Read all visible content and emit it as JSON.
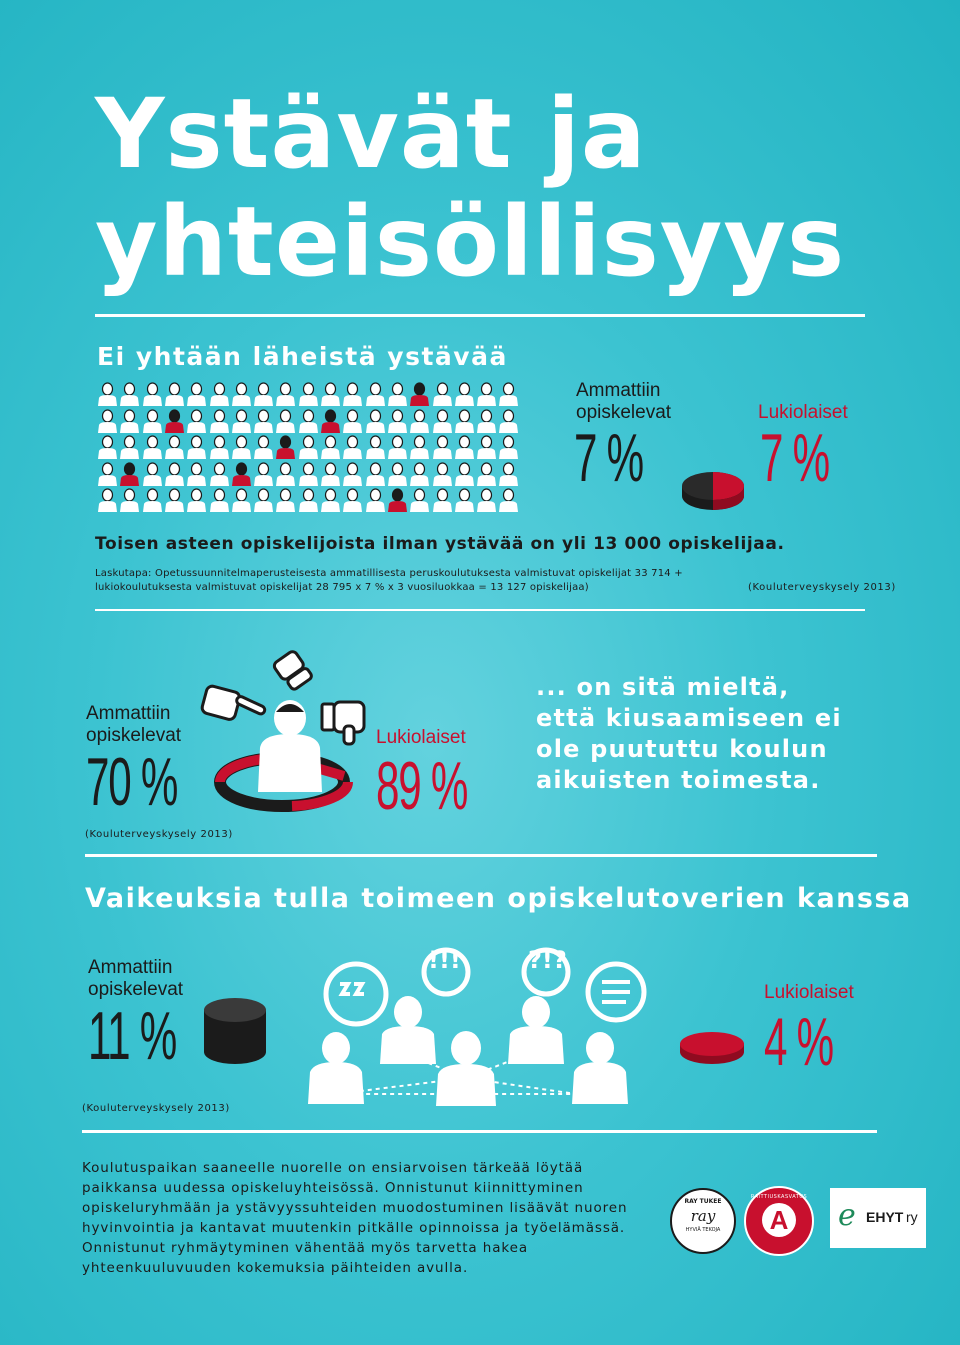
{
  "title_line1": "Ystävät ja",
  "title_line2": "yhteisöllisyys",
  "section1": {
    "heading": "Ei yhtään läheistä ystävää",
    "vocational_label_1": "Ammattiin",
    "vocational_label_2": "opiskelevat",
    "vocational_value": "7 %",
    "upper_secondary_label": "Lukiolaiset",
    "upper_secondary_value": "7 %",
    "summary": "Toisen asteen opiskelijoista ilman ystävää on yli 13 000 opiskelijaa.",
    "calc_line1": "Laskutapa: Opetussuunnitelmaperusteisesta ammatillisesta peruskoulutuksesta valmistuvat opiskelijat 33 714 +",
    "calc_line2": "lukiokoulutuksesta valmistuvat opiskelijat 28 795 x 7 % x 3 vuosiluokkaa = 13 127 opiskelijaa)",
    "source": "(Kouluterveyskysely 2013)",
    "people_total": 95,
    "people_highlighted": 7
  },
  "section2": {
    "vocational_label_1": "Ammattiin",
    "vocational_label_2": "opiskelevat",
    "vocational_value": "70 %",
    "upper_secondary_label": "Lukiolaiset",
    "upper_secondary_value": "89 %",
    "quote_line1": "... on sitä mieltä,",
    "quote_line2": "että kiusaamiseen ei",
    "quote_line3": "ole puututtu koulun",
    "quote_line4": "aikuisten toimesta.",
    "source": "(Kouluterveyskysely 2013)"
  },
  "section3": {
    "heading": "Vaikeuksia tulla toimeen opiskelutoverien kanssa",
    "vocational_label_1": "Ammattiin",
    "vocational_label_2": "opiskelevat",
    "vocational_value": "11 %",
    "upper_secondary_label": "Lukiolaiset",
    "upper_secondary_value": "4 %",
    "bubble_1": "!!!",
    "bubble_2": "?!?",
    "source": "(Kouluterveyskysely 2013)"
  },
  "footer": {
    "body": "Koulutuspaikan saaneelle nuorelle on ensiarvoisen tärkeää löytää paikkansa uudessa opiskeluyhteisössä. Onnistunut kiinnittyminen opiskeluryhmään ja ystävyyssuhteiden muodostuminen lisäävät nuoren hyvinvointia ja kantavat muutenkin pitkälle opinnoissa ja työelämässä. Onnistunut ryhmäytyminen vähentää myös tarvetta hakea yhteenkuuluvuuden kokemuksia päihteiden avulla.",
    "logo_ray_top": "RAY TUKEE",
    "logo_ray_mid": "ray",
    "logo_ray_bottom": "HYVIÄ TEKOJA",
    "logo_a_letter": "A",
    "logo_a_ring": "RAITTIUSKASVATUS",
    "logo_ehyt": "EHYT",
    "logo_ehyt_suffix": "ry"
  },
  "colors": {
    "background": "#3cc3d1",
    "red": "#c8102e",
    "dark": "#1b1b1b",
    "white": "#ffffff"
  }
}
